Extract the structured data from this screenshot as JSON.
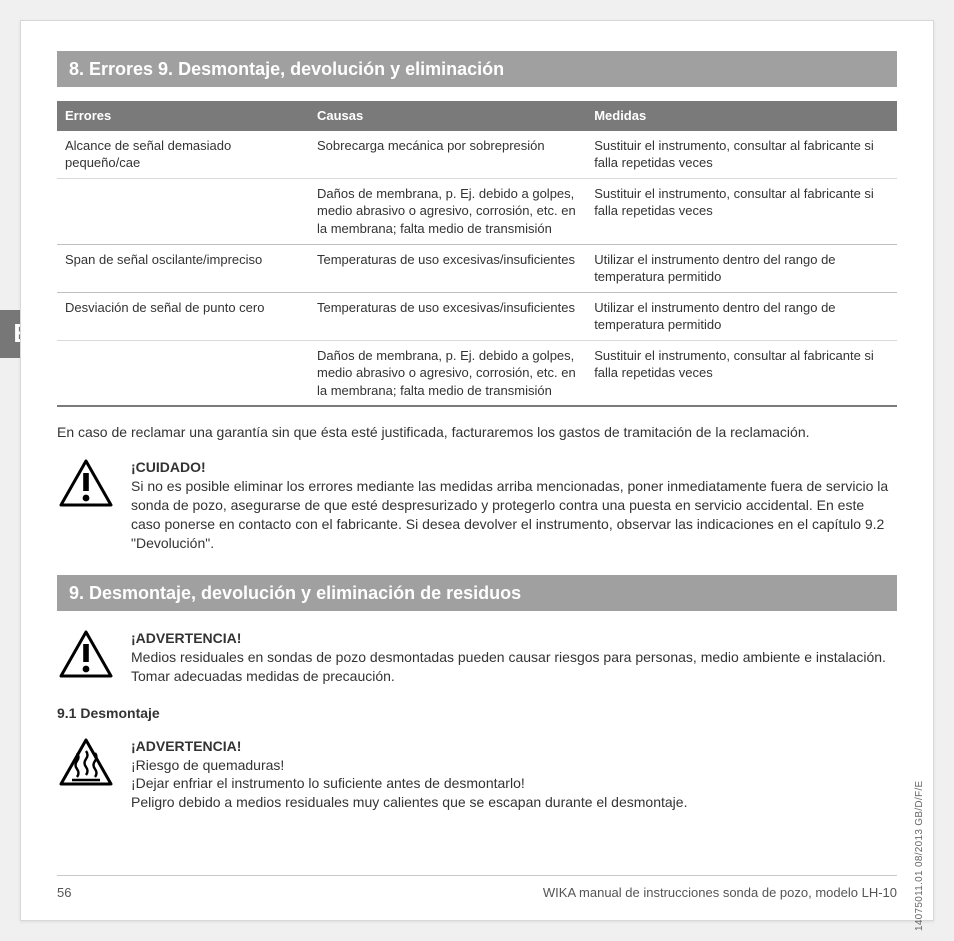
{
  "language_tab": "E",
  "section_title_1": "8. Errores 9. Desmontaje, devolución y eliminación",
  "section_title_2": "9. Desmontaje, devolución y eliminación de residuos",
  "table": {
    "headers": [
      "Errores",
      "Causas",
      "Medidas"
    ],
    "rows": [
      {
        "err": "Alcance de señal demasiado pequeño/cae",
        "cause": "Sobrecarga mecánica por sobrepresión",
        "measure": "Sustituir el instrumento, consultar al fabricante si falla repetidas veces",
        "cls": "inner"
      },
      {
        "err": "",
        "cause": "Daños de membrana, p. Ej. debido a golpes, medio abrasivo o agresivo, corrosión, etc. en la membrana; falta medio de transmisión",
        "measure": "Sustituir el instrumento, consultar al fabricante si falla repetidas veces",
        "cls": ""
      },
      {
        "err": "Span de señal oscilante/impreciso",
        "cause": "Temperaturas de uso excesivas/insuficientes",
        "measure": "Utilizar el instrumento dentro del rango de temperatura permitido",
        "cls": ""
      },
      {
        "err": "Desviación de señal de punto cero",
        "cause": "Temperaturas de uso excesivas/insuficientes",
        "measure": "Utilizar el instrumento dentro del rango de temperatura permitido",
        "cls": "inner"
      },
      {
        "err": "",
        "cause": "Daños de membrana, p. Ej. debido a golpes, medio abrasivo o agresivo, corrosión, etc. en la membrana; falta medio de transmisión",
        "measure": "Sustituir el instrumento, consultar al fabricante si falla repetidas veces",
        "cls": "last"
      }
    ]
  },
  "warranty_para": "En caso de reclamar una garantía sin que ésta esté justificada, facturaremos los gastos de tramitación de la reclamación.",
  "cuidado": {
    "heading": "¡CUIDADO!",
    "body": "Si no es posible eliminar los errores mediante las medidas arriba mencionadas, poner inmediatamente fuera de servicio la sonda de pozo, asegurarse de que esté despresurizado y protegerlo contra una puesta en servicio accidental. En este caso ponerse en contacto con el fabricante. Si desea devolver el instrumento, observar las indicaciones en el capítulo 9.2 \"Devolución\"."
  },
  "advert1": {
    "heading": "¡ADVERTENCIA!",
    "body": "Medios residuales en sondas de pozo desmontadas pueden causar riesgos para personas, medio ambiente e instalación. Tomar adecuadas medidas de precaución."
  },
  "sub91": "9.1  Desmontaje",
  "advert2": {
    "heading": "¡ADVERTENCIA!",
    "line1": "¡Riesgo de quemaduras!",
    "line2": "¡Dejar enfriar el instrumento lo suficiente antes de desmontarlo!",
    "line3": "Peligro debido a medios residuales muy calientes que se escapan durante el desmontaje."
  },
  "footer": {
    "page": "56",
    "title": "WIKA manual de instrucciones sonda de pozo, modelo LH-10"
  },
  "side_code": "14075011.01 08/2013 GB/D/F/E",
  "colors": {
    "bar": "#a0a0a0",
    "thead": "#7a7a7a"
  }
}
